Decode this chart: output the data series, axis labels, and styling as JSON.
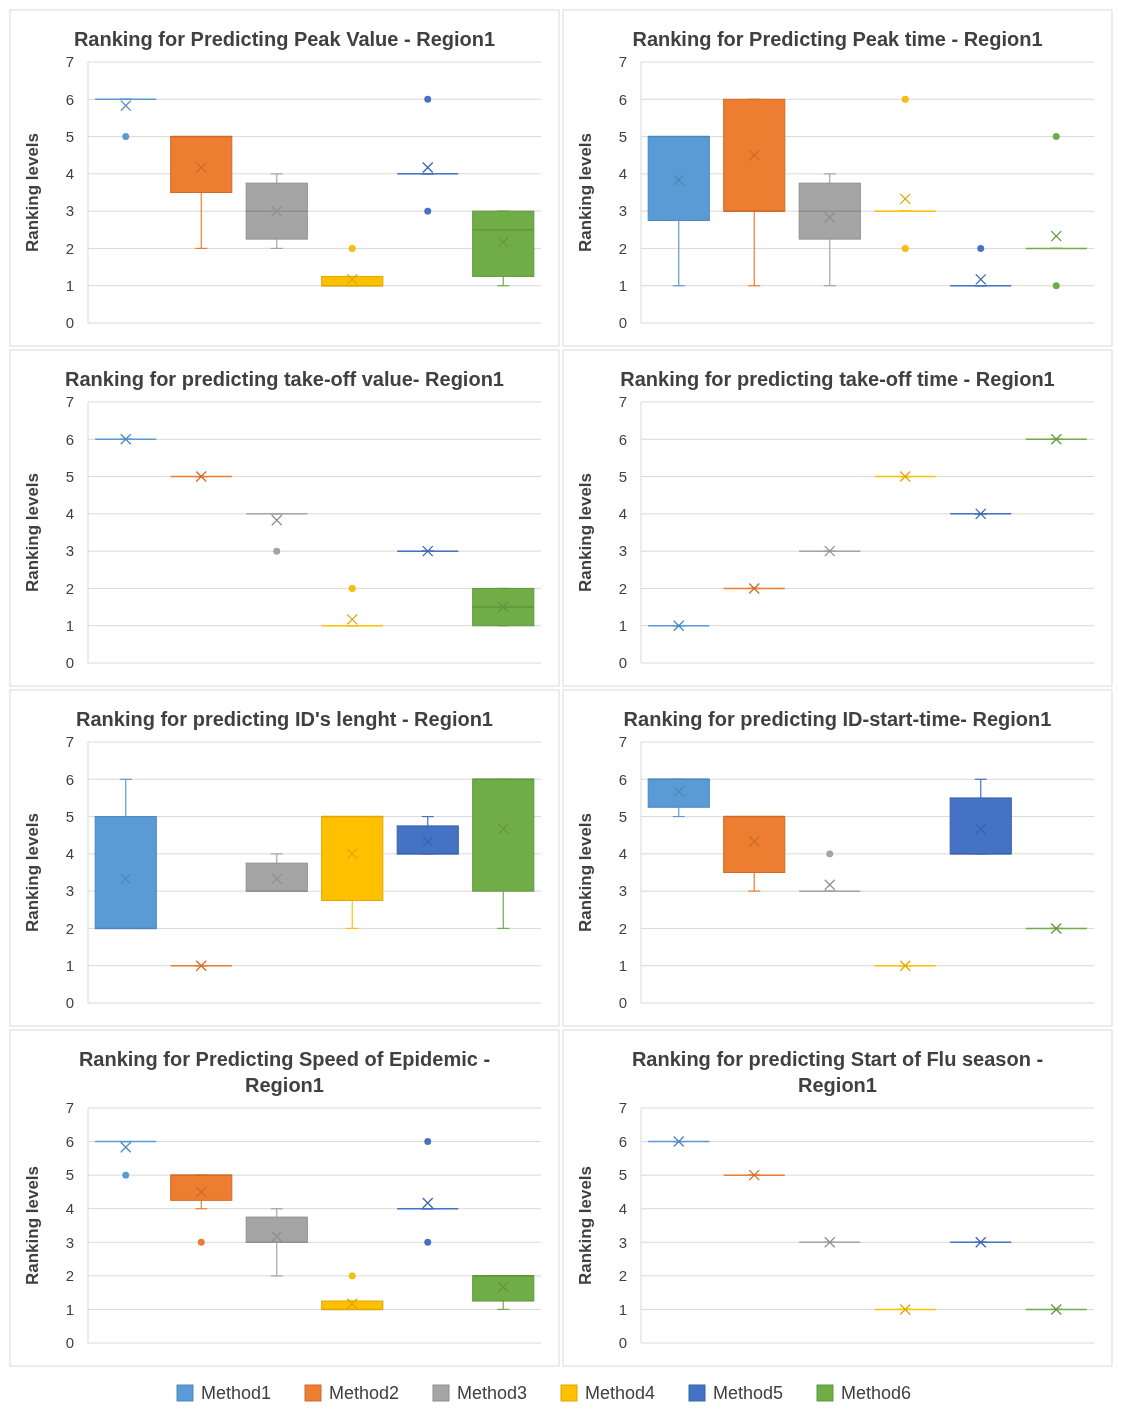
{
  "chart_data": [
    {
      "type": "box",
      "title": "Ranking for Predicting Peak Value - Region1",
      "ylabel": "Ranking levels",
      "categories": [
        null,
        null,
        null,
        null,
        null,
        null
      ],
      "ylim": [
        0,
        7
      ],
      "yticks": [
        0,
        1,
        2,
        3,
        4,
        5,
        6,
        7
      ],
      "grid": "y",
      "legend": false,
      "series": [
        {
          "color": "#5b9bd5",
          "boxes": [
            {
              "low": 6,
              "q1": 6,
              "median": 6,
              "q3": 6,
              "high": 6,
              "mean": 5.83,
              "outliers": [
                5
              ]
            },
            null,
            null,
            null,
            null,
            null
          ]
        },
        {
          "color": "#ed7d31",
          "boxes": [
            null,
            {
              "low": 2,
              "q1": 3.5,
              "median": 5,
              "q3": 5,
              "high": 5,
              "mean": 4.17
            },
            null,
            null,
            null,
            null
          ]
        },
        {
          "color": "#a5a5a5",
          "boxes": [
            null,
            null,
            {
              "low": 2,
              "q1": 2.25,
              "median": 3,
              "q3": 3.75,
              "high": 4,
              "mean": 3
            },
            null,
            null,
            null
          ]
        },
        {
          "color": "#ffc000",
          "boxes": [
            null,
            null,
            null,
            {
              "low": 1,
              "q1": 1,
              "median": 1,
              "q3": 1.25,
              "high": 1.25,
              "mean": 1.17,
              "outliers": [
                2
              ]
            },
            null,
            null
          ]
        },
        {
          "color": "#4472c4",
          "boxes": [
            null,
            null,
            null,
            null,
            {
              "low": 4,
              "q1": 4,
              "median": 4,
              "q3": 4,
              "high": 4,
              "mean": 4.17,
              "outliers": [
                6,
                3
              ]
            },
            null
          ]
        },
        {
          "color": "#70ad47",
          "boxes": [
            null,
            null,
            null,
            null,
            null,
            {
              "low": 1,
              "q1": 1.25,
              "median": 2.5,
              "q3": 3,
              "high": 3,
              "mean": 2.17
            }
          ]
        }
      ]
    },
    {
      "type": "box",
      "title": "Ranking for Predicting Peak time - Region1",
      "ylabel": "Ranking levels",
      "categories": [
        null,
        null,
        null,
        null,
        null,
        null
      ],
      "ylim": [
        0,
        7
      ],
      "yticks": [
        0,
        1,
        2,
        3,
        4,
        5,
        6,
        7
      ],
      "grid": "y",
      "legend": false,
      "series": [
        {
          "color": "#5b9bd5",
          "boxes": [
            {
              "low": 1,
              "q1": 2.75,
              "median": 5,
              "q3": 5,
              "high": 5,
              "mean": 3.83
            },
            null,
            null,
            null,
            null,
            null
          ]
        },
        {
          "color": "#ed7d31",
          "boxes": [
            null,
            {
              "low": 1,
              "q1": 3,
              "median": 3,
              "q3": 6,
              "high": 6,
              "mean": 4.5
            },
            null,
            null,
            null,
            null
          ]
        },
        {
          "color": "#a5a5a5",
          "boxes": [
            null,
            null,
            {
              "low": 1,
              "q1": 2.25,
              "median": 3,
              "q3": 3.75,
              "high": 4,
              "mean": 2.83
            },
            null,
            null,
            null
          ]
        },
        {
          "color": "#ffc000",
          "boxes": [
            null,
            null,
            null,
            {
              "low": 3,
              "q1": 3,
              "median": 3,
              "q3": 3,
              "high": 3,
              "mean": 3.33,
              "outliers": [
                6,
                2
              ]
            },
            null,
            null
          ]
        },
        {
          "color": "#4472c4",
          "boxes": [
            null,
            null,
            null,
            null,
            {
              "low": 1,
              "q1": 1,
              "median": 1,
              "q3": 1,
              "high": 1,
              "mean": 1.17,
              "outliers": [
                2
              ]
            },
            null
          ]
        },
        {
          "color": "#70ad47",
          "boxes": [
            null,
            null,
            null,
            null,
            null,
            {
              "low": 2,
              "q1": 2,
              "median": 2,
              "q3": 2,
              "high": 2,
              "mean": 2.33,
              "outliers": [
                5,
                1
              ]
            }
          ]
        }
      ]
    },
    {
      "type": "box",
      "title": "Ranking for predicting take-off value- Region1",
      "ylabel": "Ranking levels",
      "categories": [
        null,
        null,
        null,
        null,
        null,
        null
      ],
      "ylim": [
        0,
        7
      ],
      "yticks": [
        0,
        1,
        2,
        3,
        4,
        5,
        6,
        7
      ],
      "grid": "y",
      "legend": false,
      "series": [
        {
          "color": "#5b9bd5",
          "boxes": [
            {
              "low": 6,
              "q1": 6,
              "median": 6,
              "q3": 6,
              "high": 6,
              "mean": 6
            },
            null,
            null,
            null,
            null,
            null
          ]
        },
        {
          "color": "#ed7d31",
          "boxes": [
            null,
            {
              "low": 5,
              "q1": 5,
              "median": 5,
              "q3": 5,
              "high": 5,
              "mean": 5
            },
            null,
            null,
            null,
            null
          ]
        },
        {
          "color": "#a5a5a5",
          "boxes": [
            null,
            null,
            {
              "low": 4,
              "q1": 4,
              "median": 4,
              "q3": 4,
              "high": 4,
              "mean": 3.83,
              "outliers": [
                3
              ]
            },
            null,
            null,
            null
          ]
        },
        {
          "color": "#ffc000",
          "boxes": [
            null,
            null,
            null,
            {
              "low": 1,
              "q1": 1,
              "median": 1,
              "q3": 1,
              "high": 1,
              "mean": 1.17,
              "outliers": [
                2
              ]
            },
            null,
            null
          ]
        },
        {
          "color": "#4472c4",
          "boxes": [
            null,
            null,
            null,
            null,
            {
              "low": 3,
              "q1": 3,
              "median": 3,
              "q3": 3,
              "high": 3,
              "mean": 3
            },
            null
          ]
        },
        {
          "color": "#70ad47",
          "boxes": [
            null,
            null,
            null,
            null,
            null,
            {
              "low": 1,
              "q1": 1,
              "median": 1.5,
              "q3": 2,
              "high": 2,
              "mean": 1.5
            }
          ]
        }
      ]
    },
    {
      "type": "box",
      "title": "Ranking for predicting take-off time - Region1",
      "ylabel": "Ranking levels",
      "categories": [
        null,
        null,
        null,
        null,
        null,
        null
      ],
      "ylim": [
        0,
        7
      ],
      "yticks": [
        0,
        1,
        2,
        3,
        4,
        5,
        6,
        7
      ],
      "grid": "y",
      "legend": false,
      "series": [
        {
          "color": "#5b9bd5",
          "boxes": [
            {
              "low": 1,
              "q1": 1,
              "median": 1,
              "q3": 1,
              "high": 1,
              "mean": 1
            },
            null,
            null,
            null,
            null,
            null
          ]
        },
        {
          "color": "#ed7d31",
          "boxes": [
            null,
            {
              "low": 2,
              "q1": 2,
              "median": 2,
              "q3": 2,
              "high": 2,
              "mean": 2
            },
            null,
            null,
            null,
            null
          ]
        },
        {
          "color": "#a5a5a5",
          "boxes": [
            null,
            null,
            {
              "low": 3,
              "q1": 3,
              "median": 3,
              "q3": 3,
              "high": 3,
              "mean": 3
            },
            null,
            null,
            null
          ]
        },
        {
          "color": "#ffc000",
          "boxes": [
            null,
            null,
            null,
            {
              "low": 5,
              "q1": 5,
              "median": 5,
              "q3": 5,
              "high": 5,
              "mean": 5
            },
            null,
            null
          ]
        },
        {
          "color": "#4472c4",
          "boxes": [
            null,
            null,
            null,
            null,
            {
              "low": 4,
              "q1": 4,
              "median": 4,
              "q3": 4,
              "high": 4,
              "mean": 4
            },
            null
          ]
        },
        {
          "color": "#70ad47",
          "boxes": [
            null,
            null,
            null,
            null,
            null,
            {
              "low": 6,
              "q1": 6,
              "median": 6,
              "q3": 6,
              "high": 6,
              "mean": 6
            }
          ]
        }
      ]
    },
    {
      "type": "box",
      "title": "Ranking for predicting ID's lenght - Region1",
      "ylabel": "Ranking levels",
      "categories": [
        null,
        null,
        null,
        null,
        null,
        null
      ],
      "ylim": [
        0,
        7
      ],
      "yticks": [
        0,
        1,
        2,
        3,
        4,
        5,
        6,
        7
      ],
      "grid": "y",
      "legend": false,
      "series": [
        {
          "color": "#5b9bd5",
          "boxes": [
            {
              "low": 2,
              "q1": 2,
              "median": 2,
              "q3": 5,
              "high": 6,
              "mean": 3.33
            },
            null,
            null,
            null,
            null,
            null
          ]
        },
        {
          "color": "#ed7d31",
          "boxes": [
            null,
            {
              "low": 1,
              "q1": 1,
              "median": 1,
              "q3": 1,
              "high": 1,
              "mean": 1
            },
            null,
            null,
            null,
            null
          ]
        },
        {
          "color": "#a5a5a5",
          "boxes": [
            null,
            null,
            {
              "low": 3,
              "q1": 3,
              "median": 3,
              "q3": 3.75,
              "high": 4,
              "mean": 3.33
            },
            null,
            null,
            null
          ]
        },
        {
          "color": "#ffc000",
          "boxes": [
            null,
            null,
            null,
            {
              "low": 2,
              "q1": 2.75,
              "median": 5,
              "q3": 5,
              "high": 5,
              "mean": 4
            },
            null,
            null
          ]
        },
        {
          "color": "#4472c4",
          "boxes": [
            null,
            null,
            null,
            null,
            {
              "low": 4,
              "q1": 4,
              "median": 4,
              "q3": 4.75,
              "high": 5,
              "mean": 4.33
            },
            null
          ]
        },
        {
          "color": "#70ad47",
          "boxes": [
            null,
            null,
            null,
            null,
            null,
            {
              "low": 2,
              "q1": 3,
              "median": 6,
              "q3": 6,
              "high": 6,
              "mean": 4.67
            }
          ]
        }
      ]
    },
    {
      "type": "box",
      "title": "Ranking for predicting ID-start-time- Region1",
      "ylabel": "Ranking levels",
      "categories": [
        null,
        null,
        null,
        null,
        null,
        null
      ],
      "ylim": [
        0,
        7
      ],
      "yticks": [
        0,
        1,
        2,
        3,
        4,
        5,
        6,
        7
      ],
      "grid": "y",
      "legend": false,
      "series": [
        {
          "color": "#5b9bd5",
          "boxes": [
            {
              "low": 5,
              "q1": 5.25,
              "median": 6,
              "q3": 6,
              "high": 6,
              "mean": 5.67
            },
            null,
            null,
            null,
            null,
            null
          ]
        },
        {
          "color": "#ed7d31",
          "boxes": [
            null,
            {
              "low": 3,
              "q1": 3.5,
              "median": 5,
              "q3": 5,
              "high": 5,
              "mean": 4.33
            },
            null,
            null,
            null,
            null
          ]
        },
        {
          "color": "#a5a5a5",
          "boxes": [
            null,
            null,
            {
              "low": 3,
              "q1": 3,
              "median": 3,
              "q3": 3,
              "high": 3,
              "mean": 3.17,
              "outliers": [
                4
              ]
            },
            null,
            null,
            null
          ]
        },
        {
          "color": "#ffc000",
          "boxes": [
            null,
            null,
            null,
            {
              "low": 1,
              "q1": 1,
              "median": 1,
              "q3": 1,
              "high": 1,
              "mean": 1
            },
            null,
            null
          ]
        },
        {
          "color": "#4472c4",
          "boxes": [
            null,
            null,
            null,
            null,
            {
              "low": 4,
              "q1": 4,
              "median": 4,
              "q3": 5.5,
              "high": 6,
              "mean": 4.67
            },
            null
          ]
        },
        {
          "color": "#70ad47",
          "boxes": [
            null,
            null,
            null,
            null,
            null,
            {
              "low": 2,
              "q1": 2,
              "median": 2,
              "q3": 2,
              "high": 2,
              "mean": 2
            }
          ]
        }
      ]
    },
    {
      "type": "box",
      "title": "Ranking for Predicting Speed of Epidemic - Region1",
      "ylabel": "Ranking levels",
      "categories": [
        null,
        null,
        null,
        null,
        null,
        null
      ],
      "ylim": [
        0,
        7
      ],
      "yticks": [
        0,
        1,
        2,
        3,
        4,
        5,
        6,
        7
      ],
      "grid": "y",
      "legend": false,
      "series": [
        {
          "color": "#5b9bd5",
          "boxes": [
            {
              "low": 6,
              "q1": 6,
              "median": 6,
              "q3": 6,
              "high": 6,
              "mean": 5.83,
              "outliers": [
                5
              ]
            },
            null,
            null,
            null,
            null,
            null
          ]
        },
        {
          "color": "#ed7d31",
          "boxes": [
            null,
            {
              "low": 4,
              "q1": 4.25,
              "median": 5,
              "q3": 5,
              "high": 5,
              "mean": 4.5,
              "outliers": [
                3
              ]
            },
            null,
            null,
            null,
            null
          ]
        },
        {
          "color": "#a5a5a5",
          "boxes": [
            null,
            null,
            {
              "low": 2,
              "q1": 3,
              "median": 3,
              "q3": 3.75,
              "high": 4,
              "mean": 3.17
            },
            null,
            null,
            null
          ]
        },
        {
          "color": "#ffc000",
          "boxes": [
            null,
            null,
            null,
            {
              "low": 1,
              "q1": 1,
              "median": 1,
              "q3": 1.25,
              "high": 1.25,
              "mean": 1.17,
              "outliers": [
                2
              ]
            },
            null,
            null
          ]
        },
        {
          "color": "#4472c4",
          "boxes": [
            null,
            null,
            null,
            null,
            {
              "low": 4,
              "q1": 4,
              "median": 4,
              "q3": 4,
              "high": 4,
              "mean": 4.17,
              "outliers": [
                6,
                3
              ]
            },
            null
          ]
        },
        {
          "color": "#70ad47",
          "boxes": [
            null,
            null,
            null,
            null,
            null,
            {
              "low": 1,
              "q1": 1.25,
              "median": 2,
              "q3": 2,
              "high": 2,
              "mean": 1.67
            }
          ]
        }
      ]
    },
    {
      "type": "box",
      "title": "Ranking for predicting Start of Flu season - Region1",
      "ylabel": "Ranking levels",
      "categories": [
        null,
        null,
        null,
        null,
        null,
        null
      ],
      "ylim": [
        0,
        7
      ],
      "yticks": [
        0,
        1,
        2,
        3,
        4,
        5,
        6,
        7
      ],
      "grid": "y",
      "legend": "bottom",
      "series": [
        {
          "name": "Method1",
          "color": "#5b9bd5",
          "boxes": [
            {
              "low": 6,
              "q1": 6,
              "median": 6,
              "q3": 6,
              "high": 6,
              "mean": 6
            },
            null,
            null,
            null,
            null,
            null
          ]
        },
        {
          "name": "Method2",
          "color": "#ed7d31",
          "boxes": [
            null,
            {
              "low": 5,
              "q1": 5,
              "median": 5,
              "q3": 5,
              "high": 5,
              "mean": 5
            },
            null,
            null,
            null,
            null
          ]
        },
        {
          "name": "Method3",
          "color": "#a5a5a5",
          "boxes": [
            null,
            null,
            {
              "low": 3,
              "q1": 3,
              "median": 3,
              "q3": 3,
              "high": 3,
              "mean": 3
            },
            null,
            null,
            null
          ]
        },
        {
          "name": "Method4",
          "color": "#ffc000",
          "boxes": [
            null,
            null,
            null,
            {
              "low": 1,
              "q1": 1,
              "median": 1,
              "q3": 1,
              "high": 1,
              "mean": 1
            },
            null,
            null
          ]
        },
        {
          "name": "Method5",
          "color": "#4472c4",
          "boxes": [
            null,
            null,
            null,
            null,
            {
              "low": 3,
              "q1": 3,
              "median": 3,
              "q3": 3,
              "high": 3,
              "mean": 3
            },
            null
          ]
        },
        {
          "name": "Method6",
          "color": "#70ad47",
          "boxes": [
            null,
            null,
            null,
            null,
            null,
            {
              "low": 1,
              "q1": 1,
              "median": 1,
              "q3": 1,
              "high": 1,
              "mean": 1
            }
          ]
        }
      ]
    }
  ]
}
